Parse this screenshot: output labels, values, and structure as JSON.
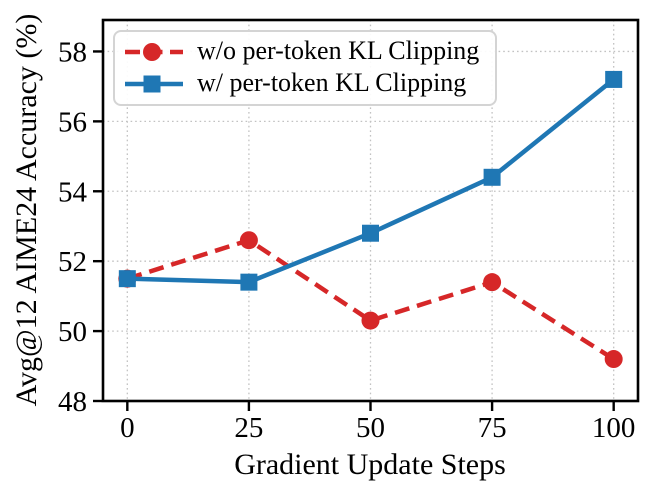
{
  "figure": {
    "background": "#ffffff",
    "text_color": "#000000",
    "spine_color": "#000000",
    "grid_color": "#c2c2c2",
    "legend_border_color": "#d4d4d4"
  },
  "chart_data": {
    "type": "line",
    "title": "",
    "xlabel": "Gradient Update Steps",
    "ylabel": "Avg@12 AIME24 Accuracy (%)",
    "x": [
      0,
      25,
      50,
      75,
      100
    ],
    "xticks": [
      "0",
      "25",
      "50",
      "75",
      "100"
    ],
    "yticks": [
      "48",
      "50",
      "52",
      "54",
      "56",
      "58"
    ],
    "ytick_values": [
      48,
      50,
      52,
      54,
      56,
      58
    ],
    "xlim": [
      -5,
      105
    ],
    "ylim": [
      48,
      58.9
    ],
    "grid": "dotted",
    "legend_position": "upper left",
    "series": [
      {
        "name": "w/o per-token KL Clipping",
        "values": [
          51.5,
          52.6,
          50.3,
          51.4,
          49.2
        ],
        "color": "#d62728",
        "line_style": "dashed",
        "marker": "circle"
      },
      {
        "name": "w/ per-token KL Clipping",
        "values": [
          51.5,
          51.4,
          52.8,
          54.4,
          57.2
        ],
        "color": "#1f77b4",
        "line_style": "solid",
        "marker": "square"
      }
    ]
  }
}
